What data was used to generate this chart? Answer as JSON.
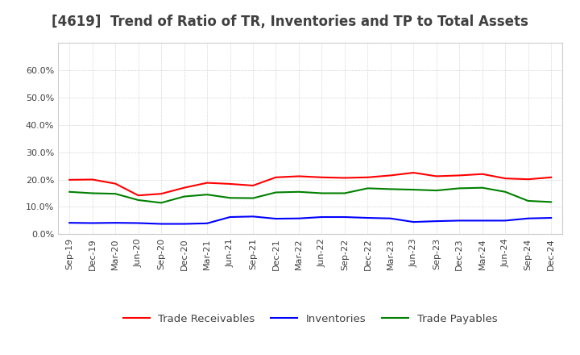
{
  "title": "[4619]  Trend of Ratio of TR, Inventories and TP to Total Assets",
  "x_labels": [
    "Sep-19",
    "Dec-19",
    "Mar-20",
    "Jun-20",
    "Sep-20",
    "Dec-20",
    "Mar-21",
    "Jun-21",
    "Sep-21",
    "Dec-21",
    "Mar-22",
    "Jun-22",
    "Sep-22",
    "Dec-22",
    "Mar-23",
    "Jun-23",
    "Sep-23",
    "Dec-23",
    "Mar-24",
    "Jun-24",
    "Sep-24",
    "Dec-24"
  ],
  "trade_receivables": [
    0.199,
    0.2,
    0.185,
    0.142,
    0.148,
    0.17,
    0.188,
    0.184,
    0.178,
    0.208,
    0.212,
    0.208,
    0.206,
    0.208,
    0.215,
    0.225,
    0.212,
    0.215,
    0.22,
    0.204,
    0.201,
    0.208
  ],
  "inventories": [
    0.042,
    0.041,
    0.042,
    0.041,
    0.038,
    0.038,
    0.04,
    0.063,
    0.065,
    0.057,
    0.058,
    0.063,
    0.063,
    0.06,
    0.058,
    0.045,
    0.048,
    0.05,
    0.05,
    0.05,
    0.058,
    0.06
  ],
  "trade_payables": [
    0.155,
    0.15,
    0.148,
    0.125,
    0.115,
    0.138,
    0.145,
    0.133,
    0.132,
    0.153,
    0.155,
    0.15,
    0.15,
    0.168,
    0.165,
    0.163,
    0.16,
    0.168,
    0.17,
    0.155,
    0.122,
    0.118
  ],
  "ylim": [
    0.0,
    0.7
  ],
  "yticks": [
    0.0,
    0.1,
    0.2,
    0.3,
    0.4,
    0.5,
    0.6
  ],
  "tr_color": "#ff0000",
  "inv_color": "#0000ff",
  "tp_color": "#008000",
  "background_color": "#ffffff",
  "grid_color": "#999999",
  "title_color": "#404040",
  "title_fontsize": 12,
  "legend_fontsize": 9.5,
  "tick_fontsize": 8,
  "tick_color": "#404040"
}
